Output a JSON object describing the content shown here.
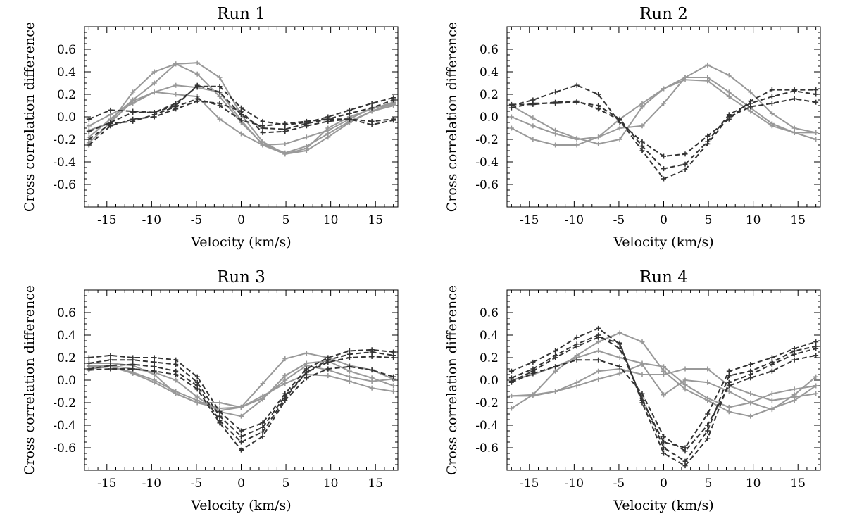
{
  "colors": {
    "solid": "#999999",
    "dashed": "#333333",
    "axis": "#000000"
  },
  "chart_data": [
    {
      "type": "line",
      "title": "Run 1",
      "xlabel": "Velocity (km/s)",
      "ylabel": "Cross correlation difference",
      "xlim": [
        -17.5,
        17.5
      ],
      "ylim": [
        -0.8,
        0.8
      ],
      "xticks": [
        "-15",
        "-10",
        "-5",
        "0",
        "5",
        "10",
        "15"
      ],
      "yticks": [
        "0.6",
        "0.4",
        "0.2",
        "0.0",
        "-0.2",
        "-0.4",
        "-0.6"
      ],
      "x": [
        -17,
        -14.6,
        -12.1,
        -9.7,
        -7.3,
        -4.9,
        -2.4,
        0,
        2.4,
        4.9,
        7.3,
        9.7,
        12.1,
        14.6,
        17
      ],
      "series": [
        {
          "name": "solid 1",
          "style": "solid",
          "values": [
            -0.23,
            -0.05,
            0.22,
            0.4,
            0.47,
            0.48,
            0.35,
            0.02,
            -0.22,
            -0.33,
            -0.3,
            -0.18,
            -0.05,
            0.05,
            0.12
          ]
        },
        {
          "name": "solid 2",
          "style": "solid",
          "values": [
            -0.18,
            -0.02,
            0.15,
            0.3,
            0.47,
            0.38,
            0.18,
            -0.05,
            -0.24,
            -0.32,
            -0.26,
            -0.15,
            -0.04,
            0.05,
            0.1
          ]
        },
        {
          "name": "solid 3",
          "style": "solid",
          "values": [
            -0.08,
            0.02,
            0.12,
            0.22,
            0.28,
            0.26,
            0.22,
            -0.03,
            -0.25,
            -0.24,
            -0.18,
            -0.12,
            -0.02,
            0.08,
            0.11
          ]
        },
        {
          "name": "solid 4",
          "style": "solid",
          "values": [
            -0.12,
            -0.05,
            0.14,
            0.22,
            0.2,
            0.18,
            -0.02,
            -0.15,
            -0.25,
            -0.33,
            -0.28,
            -0.1,
            0.0,
            0.07,
            0.13
          ]
        },
        {
          "name": "dashed 1",
          "style": "dashed",
          "values": [
            -0.02,
            0.06,
            0.05,
            0.04,
            0.12,
            0.27,
            0.27,
            0.08,
            -0.04,
            -0.07,
            -0.05,
            0.0,
            0.06,
            0.12,
            0.17
          ]
        },
        {
          "name": "dashed 2",
          "style": "dashed",
          "values": [
            -0.13,
            -0.05,
            0.04,
            0.04,
            0.1,
            0.28,
            0.22,
            0.02,
            -0.1,
            -0.11,
            -0.06,
            -0.02,
            0.03,
            0.08,
            0.15
          ]
        },
        {
          "name": "dashed 3",
          "style": "dashed",
          "values": [
            -0.25,
            -0.08,
            -0.02,
            0.0,
            0.07,
            0.14,
            0.12,
            0.05,
            -0.14,
            -0.13,
            -0.08,
            -0.04,
            -0.02,
            -0.04,
            -0.02
          ]
        },
        {
          "name": "dashed 4",
          "style": "dashed",
          "values": [
            -0.2,
            -0.06,
            -0.04,
            0.02,
            0.09,
            0.16,
            0.1,
            -0.03,
            -0.08,
            -0.06,
            -0.04,
            -0.02,
            -0.02,
            -0.07,
            -0.03
          ]
        }
      ]
    },
    {
      "type": "line",
      "title": "Run 2",
      "xlabel": "Velocity (km/s)",
      "ylabel": "Cross correlation difference",
      "xlim": [
        -17.5,
        17.5
      ],
      "ylim": [
        -0.8,
        0.8
      ],
      "xticks": [
        "-15",
        "-10",
        "-5",
        "0",
        "5",
        "10",
        "15"
      ],
      "yticks": [
        "0.6",
        "0.4",
        "0.2",
        "0.0",
        "-0.2",
        "-0.4",
        "-0.6"
      ],
      "x": [
        -17,
        -14.6,
        -12.1,
        -9.7,
        -7.3,
        -4.9,
        -2.4,
        0,
        2.4,
        4.9,
        7.3,
        9.7,
        12.1,
        14.6,
        17
      ],
      "series": [
        {
          "name": "solid 1",
          "style": "solid",
          "values": [
            -0.1,
            -0.2,
            -0.25,
            -0.25,
            -0.18,
            -0.1,
            -0.08,
            0.12,
            0.35,
            0.46,
            0.37,
            0.22,
            0.03,
            -0.1,
            -0.14
          ]
        },
        {
          "name": "solid 2",
          "style": "solid",
          "values": [
            0.0,
            -0.08,
            -0.15,
            -0.2,
            -0.18,
            -0.02,
            0.12,
            0.25,
            0.35,
            0.35,
            0.22,
            0.08,
            -0.06,
            -0.14,
            -0.2
          ]
        },
        {
          "name": "solid 3",
          "style": "solid",
          "values": [
            0.1,
            -0.01,
            -0.12,
            -0.19,
            -0.24,
            -0.2,
            0.09,
            0.25,
            0.33,
            0.32,
            0.18,
            0.05,
            -0.08,
            -0.14,
            -0.14
          ]
        },
        {
          "name": "dashed 1",
          "style": "dashed",
          "values": [
            0.1,
            0.15,
            0.22,
            0.28,
            0.2,
            -0.05,
            -0.22,
            -0.35,
            -0.33,
            -0.17,
            -0.02,
            0.14,
            0.24,
            0.24,
            0.24
          ]
        },
        {
          "name": "dashed 2",
          "style": "dashed",
          "values": [
            0.08,
            0.12,
            0.12,
            0.13,
            0.1,
            -0.02,
            -0.26,
            -0.46,
            -0.42,
            -0.22,
            0.02,
            0.12,
            0.18,
            0.23,
            0.2
          ]
        },
        {
          "name": "dashed 3",
          "style": "dashed",
          "values": [
            0.11,
            0.11,
            0.13,
            0.14,
            0.07,
            -0.03,
            -0.3,
            -0.55,
            -0.47,
            -0.24,
            0.0,
            0.09,
            0.12,
            0.16,
            0.13
          ]
        }
      ]
    },
    {
      "type": "line",
      "title": "Run 3",
      "xlabel": "Velocity (km/s)",
      "ylabel": "Cross correlation difference",
      "xlim": [
        -17.5,
        17.5
      ],
      "ylim": [
        -0.8,
        0.8
      ],
      "xticks": [
        "-15",
        "-10",
        "-5",
        "0",
        "5",
        "10",
        "15"
      ],
      "yticks": [
        "0.6",
        "0.4",
        "0.2",
        "0.0",
        "-0.2",
        "-0.4",
        "-0.6"
      ],
      "x": [
        -17,
        -14.6,
        -12.1,
        -9.7,
        -7.3,
        -4.9,
        -2.4,
        0,
        2.4,
        4.9,
        7.3,
        9.7,
        12.1,
        14.6,
        17
      ],
      "series": [
        {
          "name": "solid 1",
          "style": "solid",
          "values": [
            0.15,
            0.15,
            0.13,
            0.05,
            -0.12,
            -0.2,
            -0.25,
            -0.24,
            -0.03,
            0.19,
            0.24,
            0.2,
            0.13,
            0.09,
            0.01
          ]
        },
        {
          "name": "solid 2",
          "style": "solid",
          "values": [
            0.12,
            0.13,
            0.1,
            0.07,
            0.0,
            -0.15,
            -0.28,
            -0.32,
            -0.17,
            0.04,
            0.15,
            0.17,
            0.08,
            0.02,
            -0.05
          ]
        },
        {
          "name": "solid 3",
          "style": "solid",
          "values": [
            0.13,
            0.12,
            0.07,
            0.0,
            -0.1,
            -0.18,
            -0.27,
            -0.24,
            -0.16,
            0.0,
            0.13,
            0.09,
            0.03,
            -0.01,
            0.01
          ]
        },
        {
          "name": "solid 4",
          "style": "solid",
          "values": [
            0.1,
            0.12,
            0.06,
            -0.02,
            -0.12,
            -0.2,
            -0.2,
            -0.24,
            -0.14,
            -0.03,
            0.05,
            0.04,
            -0.01,
            -0.07,
            -0.1
          ]
        },
        {
          "name": "dashed 1",
          "style": "dashed",
          "values": [
            0.2,
            0.22,
            0.2,
            0.2,
            0.18,
            0.03,
            -0.28,
            -0.45,
            -0.38,
            -0.12,
            0.1,
            0.2,
            0.26,
            0.27,
            0.25
          ]
        },
        {
          "name": "dashed 2",
          "style": "dashed",
          "values": [
            0.15,
            0.18,
            0.18,
            0.16,
            0.14,
            -0.02,
            -0.32,
            -0.5,
            -0.42,
            -0.14,
            0.07,
            0.18,
            0.23,
            0.25,
            0.22
          ]
        },
        {
          "name": "dashed 3",
          "style": "dashed",
          "values": [
            0.1,
            0.13,
            0.14,
            0.12,
            0.08,
            -0.05,
            -0.36,
            -0.55,
            -0.46,
            -0.16,
            0.07,
            0.16,
            0.2,
            0.21,
            0.2
          ]
        },
        {
          "name": "dashed 4",
          "style": "dashed",
          "values": [
            0.09,
            0.1,
            0.1,
            0.08,
            0.05,
            -0.08,
            -0.38,
            -0.62,
            -0.5,
            -0.18,
            0.02,
            0.1,
            0.12,
            0.09,
            0.03
          ]
        }
      ]
    },
    {
      "type": "line",
      "title": "Run 4",
      "xlabel": "Velocity (km/s)",
      "ylabel": "Cross correlation difference",
      "xlim": [
        -17.5,
        17.5
      ],
      "ylim": [
        -0.8,
        0.8
      ],
      "xticks": [
        "-15",
        "-10",
        "-5",
        "0",
        "5",
        "10",
        "15"
      ],
      "yticks": [
        "0.6",
        "0.4",
        "0.2",
        "0.0",
        "-0.2",
        "-0.4",
        "-0.6"
      ],
      "x": [
        -17,
        -14.6,
        -12.1,
        -9.7,
        -7.3,
        -4.9,
        -2.4,
        0,
        2.4,
        4.9,
        7.3,
        9.7,
        12.1,
        14.6,
        17
      ],
      "series": [
        {
          "name": "solid 1",
          "style": "solid",
          "values": [
            -0.25,
            -0.13,
            0.08,
            0.22,
            0.34,
            0.42,
            0.34,
            0.08,
            -0.08,
            -0.18,
            -0.28,
            -0.32,
            -0.25,
            -0.18,
            -0.05
          ]
        },
        {
          "name": "solid 2",
          "style": "solid",
          "values": [
            -0.14,
            -0.13,
            -0.1,
            -0.02,
            0.08,
            0.1,
            0.05,
            0.05,
            0.1,
            0.1,
            -0.05,
            -0.12,
            -0.18,
            -0.15,
            -0.12
          ]
        },
        {
          "name": "solid 3",
          "style": "solid",
          "values": [
            -0.14,
            -0.14,
            -0.1,
            -0.05,
            0.01,
            0.06,
            0.14,
            -0.13,
            0.0,
            -0.02,
            -0.1,
            -0.2,
            -0.26,
            -0.13,
            0.03
          ]
        },
        {
          "name": "solid 4",
          "style": "solid",
          "values": [
            0.0,
            0.05,
            0.12,
            0.2,
            0.26,
            0.2,
            0.15,
            0.12,
            -0.04,
            -0.16,
            -0.24,
            -0.2,
            -0.12,
            -0.08,
            -0.05
          ]
        },
        {
          "name": "dashed 1",
          "style": "dashed",
          "values": [
            0.08,
            0.16,
            0.26,
            0.38,
            0.46,
            0.32,
            -0.18,
            -0.55,
            -0.6,
            -0.3,
            0.08,
            0.14,
            0.2,
            0.28,
            0.34
          ]
        },
        {
          "name": "dashed 2",
          "style": "dashed",
          "values": [
            0.02,
            0.1,
            0.22,
            0.32,
            0.4,
            0.28,
            -0.16,
            -0.6,
            -0.72,
            -0.45,
            0.04,
            0.08,
            0.16,
            0.26,
            0.3
          ]
        },
        {
          "name": "dashed 3",
          "style": "dashed",
          "values": [
            -0.01,
            0.08,
            0.2,
            0.3,
            0.38,
            0.33,
            -0.2,
            -0.65,
            -0.76,
            -0.52,
            -0.02,
            0.05,
            0.14,
            0.23,
            0.28
          ]
        },
        {
          "name": "dashed 4",
          "style": "dashed",
          "values": [
            -0.02,
            0.06,
            0.12,
            0.18,
            0.18,
            0.12,
            -0.12,
            -0.5,
            -0.63,
            -0.4,
            -0.05,
            0.02,
            0.08,
            0.18,
            0.22
          ]
        }
      ]
    }
  ]
}
